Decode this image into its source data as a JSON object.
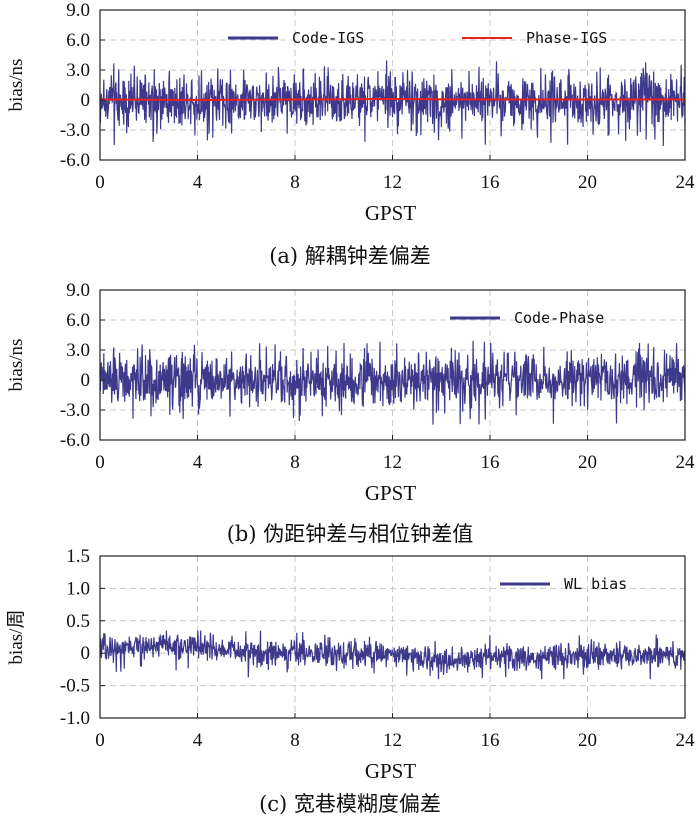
{
  "chart_data": [
    {
      "type": "line",
      "caption": "(a) 解耦钟差偏差",
      "xlabel": "GPST",
      "ylabel": "bias/ns",
      "xlim": [
        0,
        24
      ],
      "ylim": [
        -6.0,
        9.0
      ],
      "xticks": [
        "0",
        "4",
        "8",
        "12",
        "16",
        "20",
        "24"
      ],
      "yticks": [
        "9.0",
        "6.0",
        "3.0",
        "0",
        "-3.0",
        "-6.0"
      ],
      "grid": true,
      "legend_position": "top",
      "series": [
        {
          "name": "Code-IGS",
          "color": "#3d3a8c",
          "style": "noise",
          "mean": 0.0,
          "amplitude": 1.3,
          "peak_max": 4.0,
          "peak_min": -4.6
        },
        {
          "name": "Phase-IGS",
          "color": "#e8211e",
          "style": "smooth",
          "x": [
            0,
            4,
            8,
            12,
            16,
            20,
            24
          ],
          "values": [
            0.05,
            0.0,
            0.05,
            0.1,
            0.05,
            0.05,
            0.05
          ]
        }
      ]
    },
    {
      "type": "line",
      "caption": "(b) 伪距钟差与相位钟差值",
      "xlabel": "GPST",
      "ylabel": "bias/ns",
      "xlim": [
        0,
        24
      ],
      "ylim": [
        -6.0,
        9.0
      ],
      "xticks": [
        "0",
        "4",
        "8",
        "12",
        "16",
        "20",
        "24"
      ],
      "yticks": [
        "9.0",
        "6.0",
        "3.0",
        "0",
        "-3.0",
        "-6.0"
      ],
      "grid": true,
      "legend_position": "top-right",
      "series": [
        {
          "name": "Code-Phase",
          "color": "#3d3a8c",
          "style": "noise",
          "mean": 0.0,
          "amplitude": 1.3,
          "peak_max": 4.0,
          "peak_min": -4.6
        }
      ]
    },
    {
      "type": "line",
      "caption": "(c) 宽巷模糊度偏差",
      "xlabel": "GPST",
      "ylabel": "bias/周",
      "xlim": [
        0,
        24
      ],
      "ylim": [
        -1.0,
        1.5
      ],
      "xticks": [
        "0",
        "4",
        "8",
        "12",
        "16",
        "20",
        "24"
      ],
      "yticks": [
        "1.5",
        "1.0",
        "0.5",
        "0",
        "-0.5",
        "-1.0"
      ],
      "grid": true,
      "legend_position": "top-right",
      "series": [
        {
          "name": "WL bias",
          "color": "#3d3a8c",
          "style": "noise",
          "mean_trend_x": [
            0,
            2,
            4,
            6,
            8,
            10,
            12,
            14,
            16,
            20,
            24
          ],
          "mean_trend": [
            0.05,
            0.12,
            0.1,
            0.02,
            -0.02,
            -0.03,
            0.0,
            -0.12,
            -0.05,
            -0.07,
            -0.02
          ],
          "amplitude": 0.1,
          "peak_max": 0.35,
          "peak_min": -0.4
        }
      ]
    }
  ]
}
